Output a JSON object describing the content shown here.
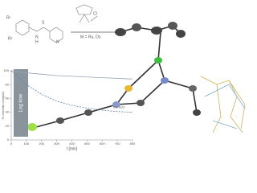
{
  "scheme": {
    "labels": [
      "R¹",
      "R²",
      "N",
      "H",
      "S",
      "N",
      "M = Ru, Os",
      "Cl"
    ]
  },
  "chart_data": {
    "type": "line",
    "y_label": "% chloride complex",
    "x_label": "t [min]",
    "annotations": [
      "Log kow",
      "5% H₂O"
    ],
    "x": [
      0,
      100,
      200,
      300,
      400,
      500,
      600,
      700,
      800
    ],
    "series": [
      {
        "color": "#5b7fb5",
        "values": [
          100,
          80,
          66,
          56,
          50,
          46,
          43,
          41,
          40
        ]
      },
      {
        "color": "#9aa3ad",
        "values": [
          100,
          97,
          95,
          93,
          92,
          91,
          90,
          89,
          88
        ]
      }
    ],
    "xlim": [
      0,
      800
    ],
    "ylim": [
      0,
      100
    ],
    "xticks": [
      0,
      100,
      200,
      300,
      400,
      500,
      600,
      700,
      800
    ],
    "yticks": [
      0,
      20,
      40,
      60,
      80,
      100
    ]
  }
}
